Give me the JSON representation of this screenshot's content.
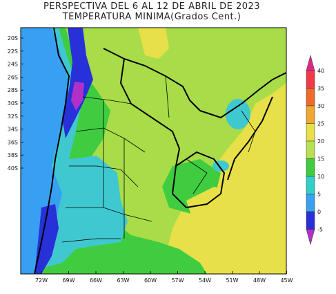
{
  "title_line1": "PERSPECTIVA DEL 6 AL 12 DE ABRIL DE 2023",
  "title_line2": "TEMPERATURA MINIMA(Grados Cent.)",
  "lat_labels": [
    "20S",
    "22S",
    "24S",
    "26S",
    "28S",
    "30S",
    "32S",
    "34S",
    "36S",
    "38S",
    "40S"
  ],
  "lon_labels": [
    "72W",
    "69W",
    "66W",
    "63W",
    "60W",
    "57W",
    "54W",
    "51W",
    "48W",
    "45W"
  ],
  "legend": {
    "labels": [
      "40",
      "35",
      "30",
      "25",
      "20",
      "15",
      "10",
      "5",
      "0",
      "-5"
    ],
    "colors": [
      "#e0258a",
      "#f03a4a",
      "#f06a2a",
      "#f0a830",
      "#e8e048",
      "#b8e050",
      "#40cc40",
      "#30d0c8",
      "#3aa0f0",
      "#2830d8",
      "#b030c8"
    ]
  },
  "colors": {
    "ocean_warm": "#e8e048",
    "land_green": "#a8dc48",
    "deep_green": "#40cc40",
    "cyan": "#40c8d0",
    "blue": "#38a0f0",
    "dark_blue": "#2830d8",
    "purple": "#b030c8"
  }
}
